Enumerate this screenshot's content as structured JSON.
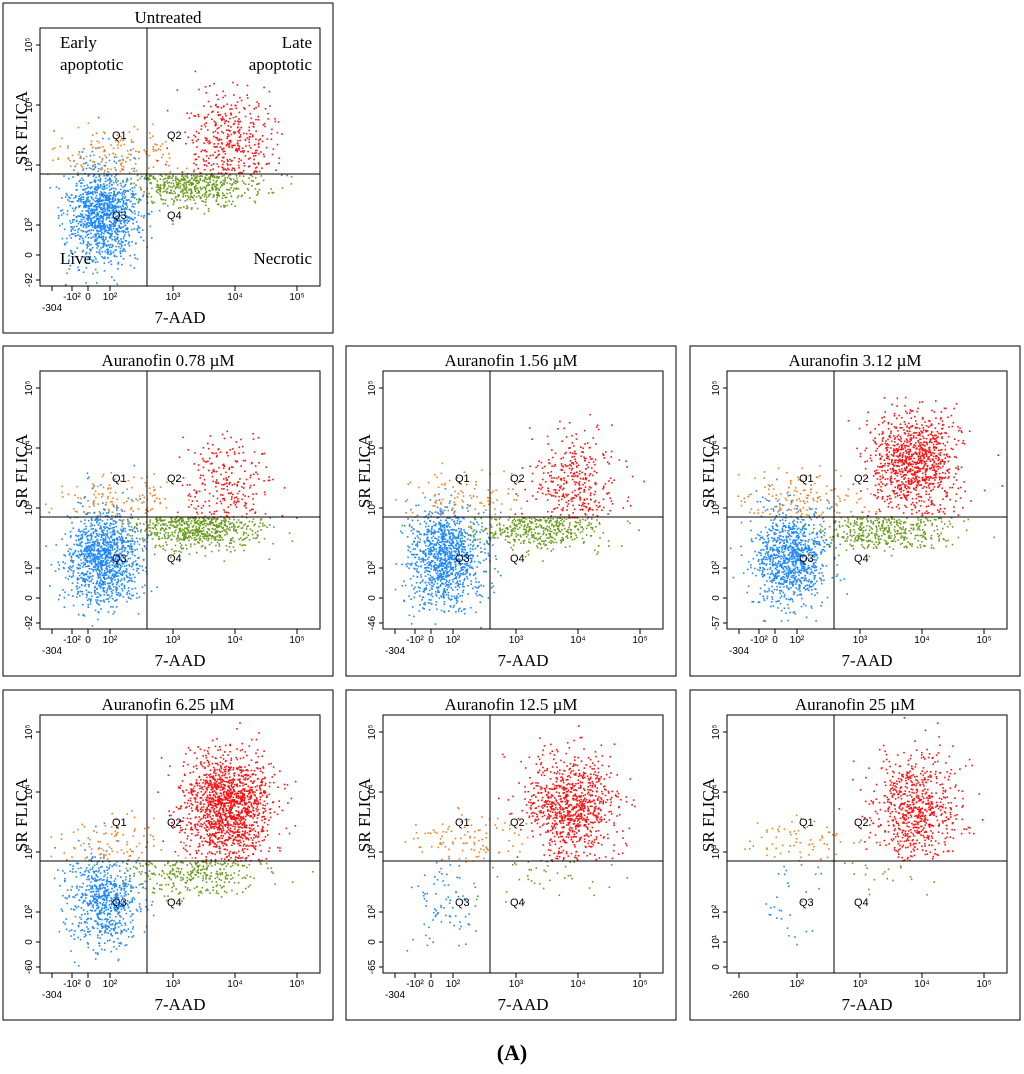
{
  "panels": [
    {
      "title": "Untreated",
      "x_label": "7-AAD",
      "y_label": "SR FLICA",
      "quadrants": [
        "Q1",
        "Q2",
        "Q3",
        "Q4"
      ],
      "xticks": [
        "-304",
        "-10²",
        "0",
        "10²",
        "10³",
        "10⁴",
        "10⁵"
      ],
      "yticks": [
        "10⁵",
        "10⁴",
        "10³",
        "10²",
        "0",
        "-92"
      ],
      "corners": [
        "Early",
        "apoptotic",
        "Late",
        "apoptotic",
        "Live",
        "Necrotic"
      ]
    },
    {
      "title": "Auranofin 0.78 µM",
      "x_label": "7-AAD",
      "y_label": "SR FLICA",
      "quadrants": [
        "Q1",
        "Q2",
        "Q3",
        "Q4"
      ],
      "xticks": [
        "-304",
        "-10²",
        "0",
        "10²",
        "10³",
        "10⁴",
        "10⁵"
      ],
      "yticks": [
        "10⁵",
        "10⁴",
        "10³",
        "10²",
        "0",
        "-92"
      ]
    },
    {
      "title": "Auranofin 1.56 µM",
      "x_label": "7-AAD",
      "y_label": "SR FLICA",
      "quadrants": [
        "Q1",
        "Q2",
        "Q3",
        "Q4"
      ],
      "xticks": [
        "-304",
        "-10²",
        "0",
        "10²",
        "10³",
        "10⁴",
        "10⁵"
      ],
      "yticks": [
        "10⁵",
        "10⁴",
        "10³",
        "10²",
        "0",
        "-46"
      ]
    },
    {
      "title": "Auranofin 3.12 µM",
      "x_label": "7-AAD",
      "y_label": "SR FLICA",
      "quadrants": [
        "Q1",
        "Q2",
        "Q3",
        "Q4"
      ],
      "xticks": [
        "-304",
        "-10²",
        "0",
        "10²",
        "10³",
        "10⁴",
        "10⁵"
      ],
      "yticks": [
        "10⁵",
        "10⁴",
        "10³",
        "10²",
        "0",
        "-57"
      ]
    },
    {
      "title": "Auranofin 6.25 µM",
      "x_label": "7-AAD",
      "y_label": "SR FLICA",
      "quadrants": [
        "Q1",
        "Q2",
        "Q3",
        "Q4"
      ],
      "xticks": [
        "-304",
        "-10²",
        "0",
        "10²",
        "10³",
        "10⁴",
        "10⁵"
      ],
      "yticks": [
        "10⁵",
        "10⁴",
        "10³",
        "10²",
        "0",
        "-60"
      ]
    },
    {
      "title": "Auranofin 12.5 µM",
      "x_label": "7-AAD",
      "y_label": "SR FLICA",
      "quadrants": [
        "Q1",
        "Q2",
        "Q3",
        "Q4"
      ],
      "xticks": [
        "-304",
        "-10²",
        "0",
        "10²",
        "10³",
        "10⁴",
        "10⁵"
      ],
      "yticks": [
        "10⁵",
        "10⁴",
        "10³",
        "10²",
        "0",
        "-65"
      ]
    },
    {
      "title": "Auranofin 25 µM",
      "x_label": "7-AAD",
      "y_label": "SR FLICA",
      "quadrants": [
        "Q1",
        "Q2",
        "Q3",
        "Q4"
      ],
      "xticks": [
        "-260",
        "10²",
        "10³",
        "10⁴",
        "10⁵"
      ],
      "yticks": [
        "10⁵",
        "10⁴",
        "10³",
        "10²",
        "10¹",
        "0"
      ]
    }
  ],
  "caption": "(A)"
}
